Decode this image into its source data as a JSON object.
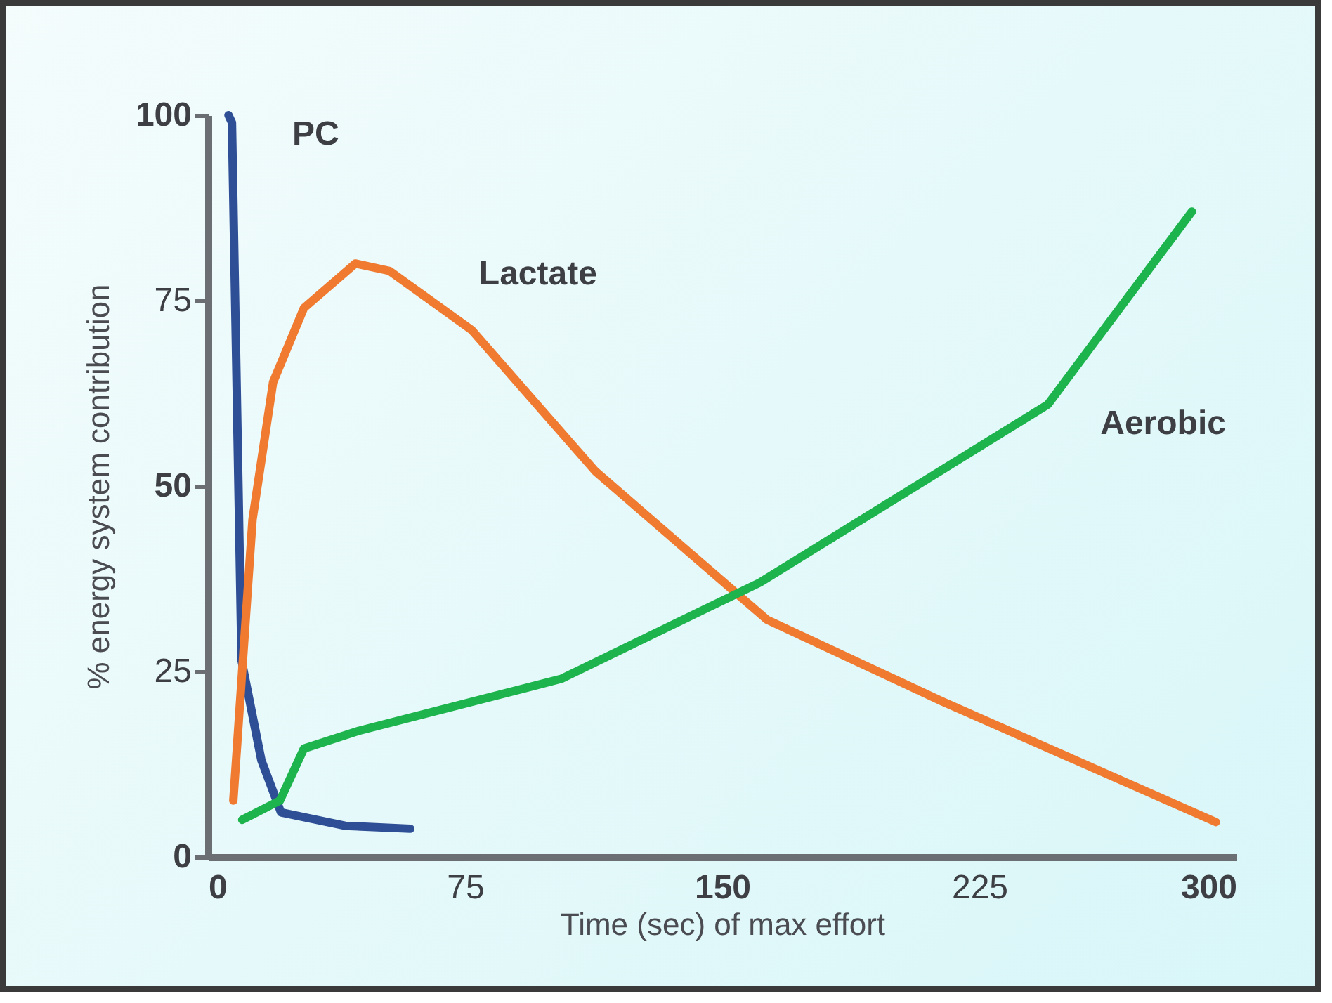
{
  "chart_data": {
    "type": "line",
    "xlabel": "Time (sec) of max effort",
    "ylabel": "% energy system contribution",
    "xlim": [
      0,
      300
    ],
    "xticks": [
      0,
      75,
      150,
      225,
      300
    ],
    "ylim": [
      0,
      100
    ],
    "yticks": [
      0,
      25,
      50,
      75,
      100
    ],
    "grid": false,
    "marker": "none",
    "line_style": "solid",
    "series": [
      {
        "name": "PC",
        "color": "#2e4e96",
        "x": [
          6,
          7,
          9.8,
          15.6,
          21.3,
          40,
          59
        ],
        "values": [
          100,
          99,
          26.5,
          13,
          6,
          4.2,
          3.8
        ]
      },
      {
        "name": "Lactate",
        "color": "#ef7a30",
        "x": [
          7.4,
          13,
          19,
          28,
          43,
          53,
          77,
          113,
          163,
          214,
          294
        ],
        "values": [
          7.6,
          45.5,
          64,
          74,
          80,
          79,
          71,
          52,
          32,
          21,
          4.7
        ]
      },
      {
        "name": "Aerobic",
        "color": "#1db34d",
        "x": [
          10,
          21,
          28,
          44,
          103,
          161,
          245,
          287
        ],
        "values": [
          5,
          7.6,
          14.6,
          17,
          24,
          37,
          61,
          87
        ]
      }
    ]
  }
}
